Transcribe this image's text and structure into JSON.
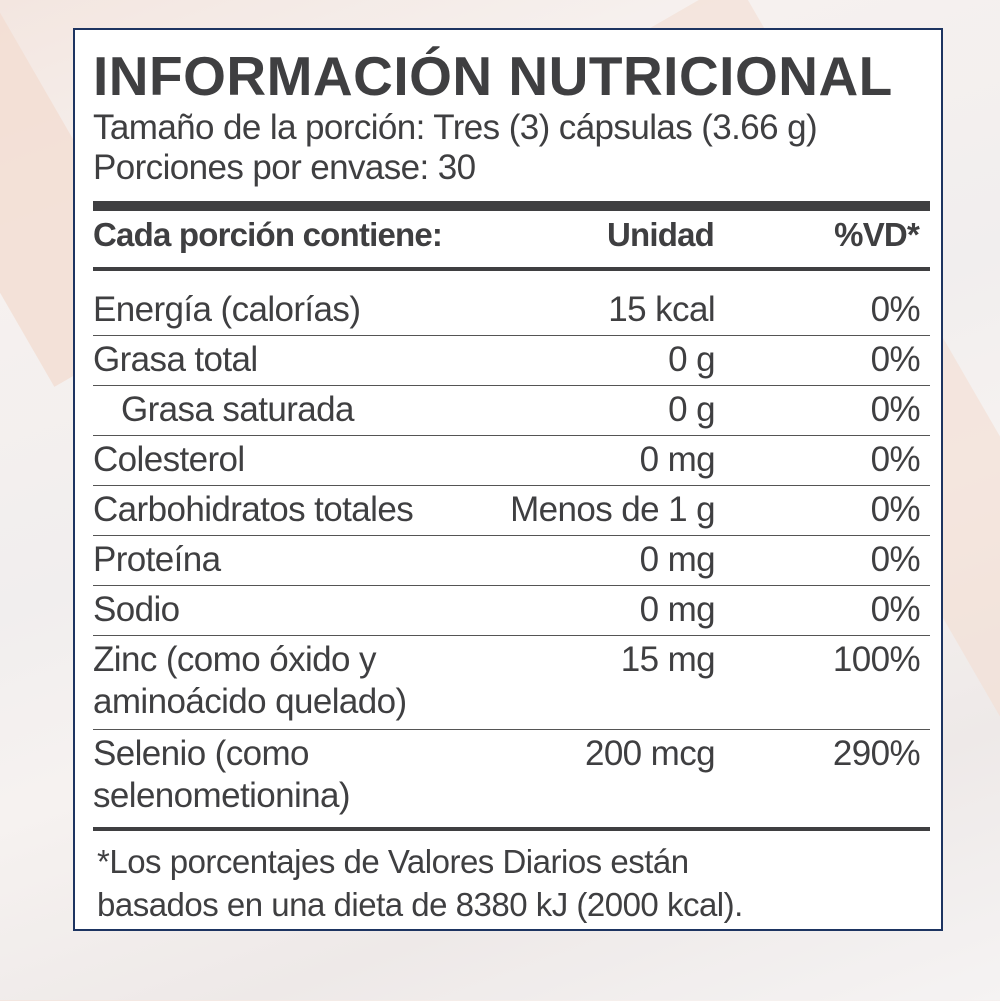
{
  "title": "INFORMACIÓN NUTRICIONAL",
  "serving_size": "Tamaño de la porción: Tres (3) cápsulas (3.66 g)",
  "servings_per_container": "Porciones por envase: 30",
  "header": {
    "label": "Cada porción contiene:",
    "unit": "Unidad",
    "dv": "%VD*"
  },
  "rows": [
    {
      "name": "Energía (calorías)",
      "amount": "15 kcal",
      "dv": "0%"
    },
    {
      "name": "Grasa total",
      "amount": "0 g",
      "dv": "0%"
    },
    {
      "name": "Grasa saturada",
      "amount": "0 g",
      "dv": "0%"
    },
    {
      "name": "Colesterol",
      "amount": "0 mg",
      "dv": "0%"
    },
    {
      "name": "Carbohidratos totales",
      "amount": "Menos de 1 g",
      "dv": "0%"
    },
    {
      "name": "Proteína",
      "amount": "0 mg",
      "dv": "0%"
    },
    {
      "name": "Sodio",
      "amount": "0 mg",
      "dv": "0%"
    },
    {
      "name": "Zinc (como óxido y aminoácido quelado)",
      "name_line1": "Zinc (como óxido y",
      "name_line2": "aminoácido quelado)",
      "amount": "15 mg",
      "dv": "100%"
    },
    {
      "name": "Selenio (como selenometionina)",
      "name_line1": "Selenio (como",
      "name_line2": "selenometionina)",
      "amount": "200 mcg",
      "dv": "290%"
    }
  ],
  "footnote_line1": "*Los porcentajes de Valores Diarios están",
  "footnote_line2": "basados en una dieta de 8380 kJ (2000 kcal).",
  "colors": {
    "border": "#1d3461",
    "text": "#3f3f41"
  }
}
